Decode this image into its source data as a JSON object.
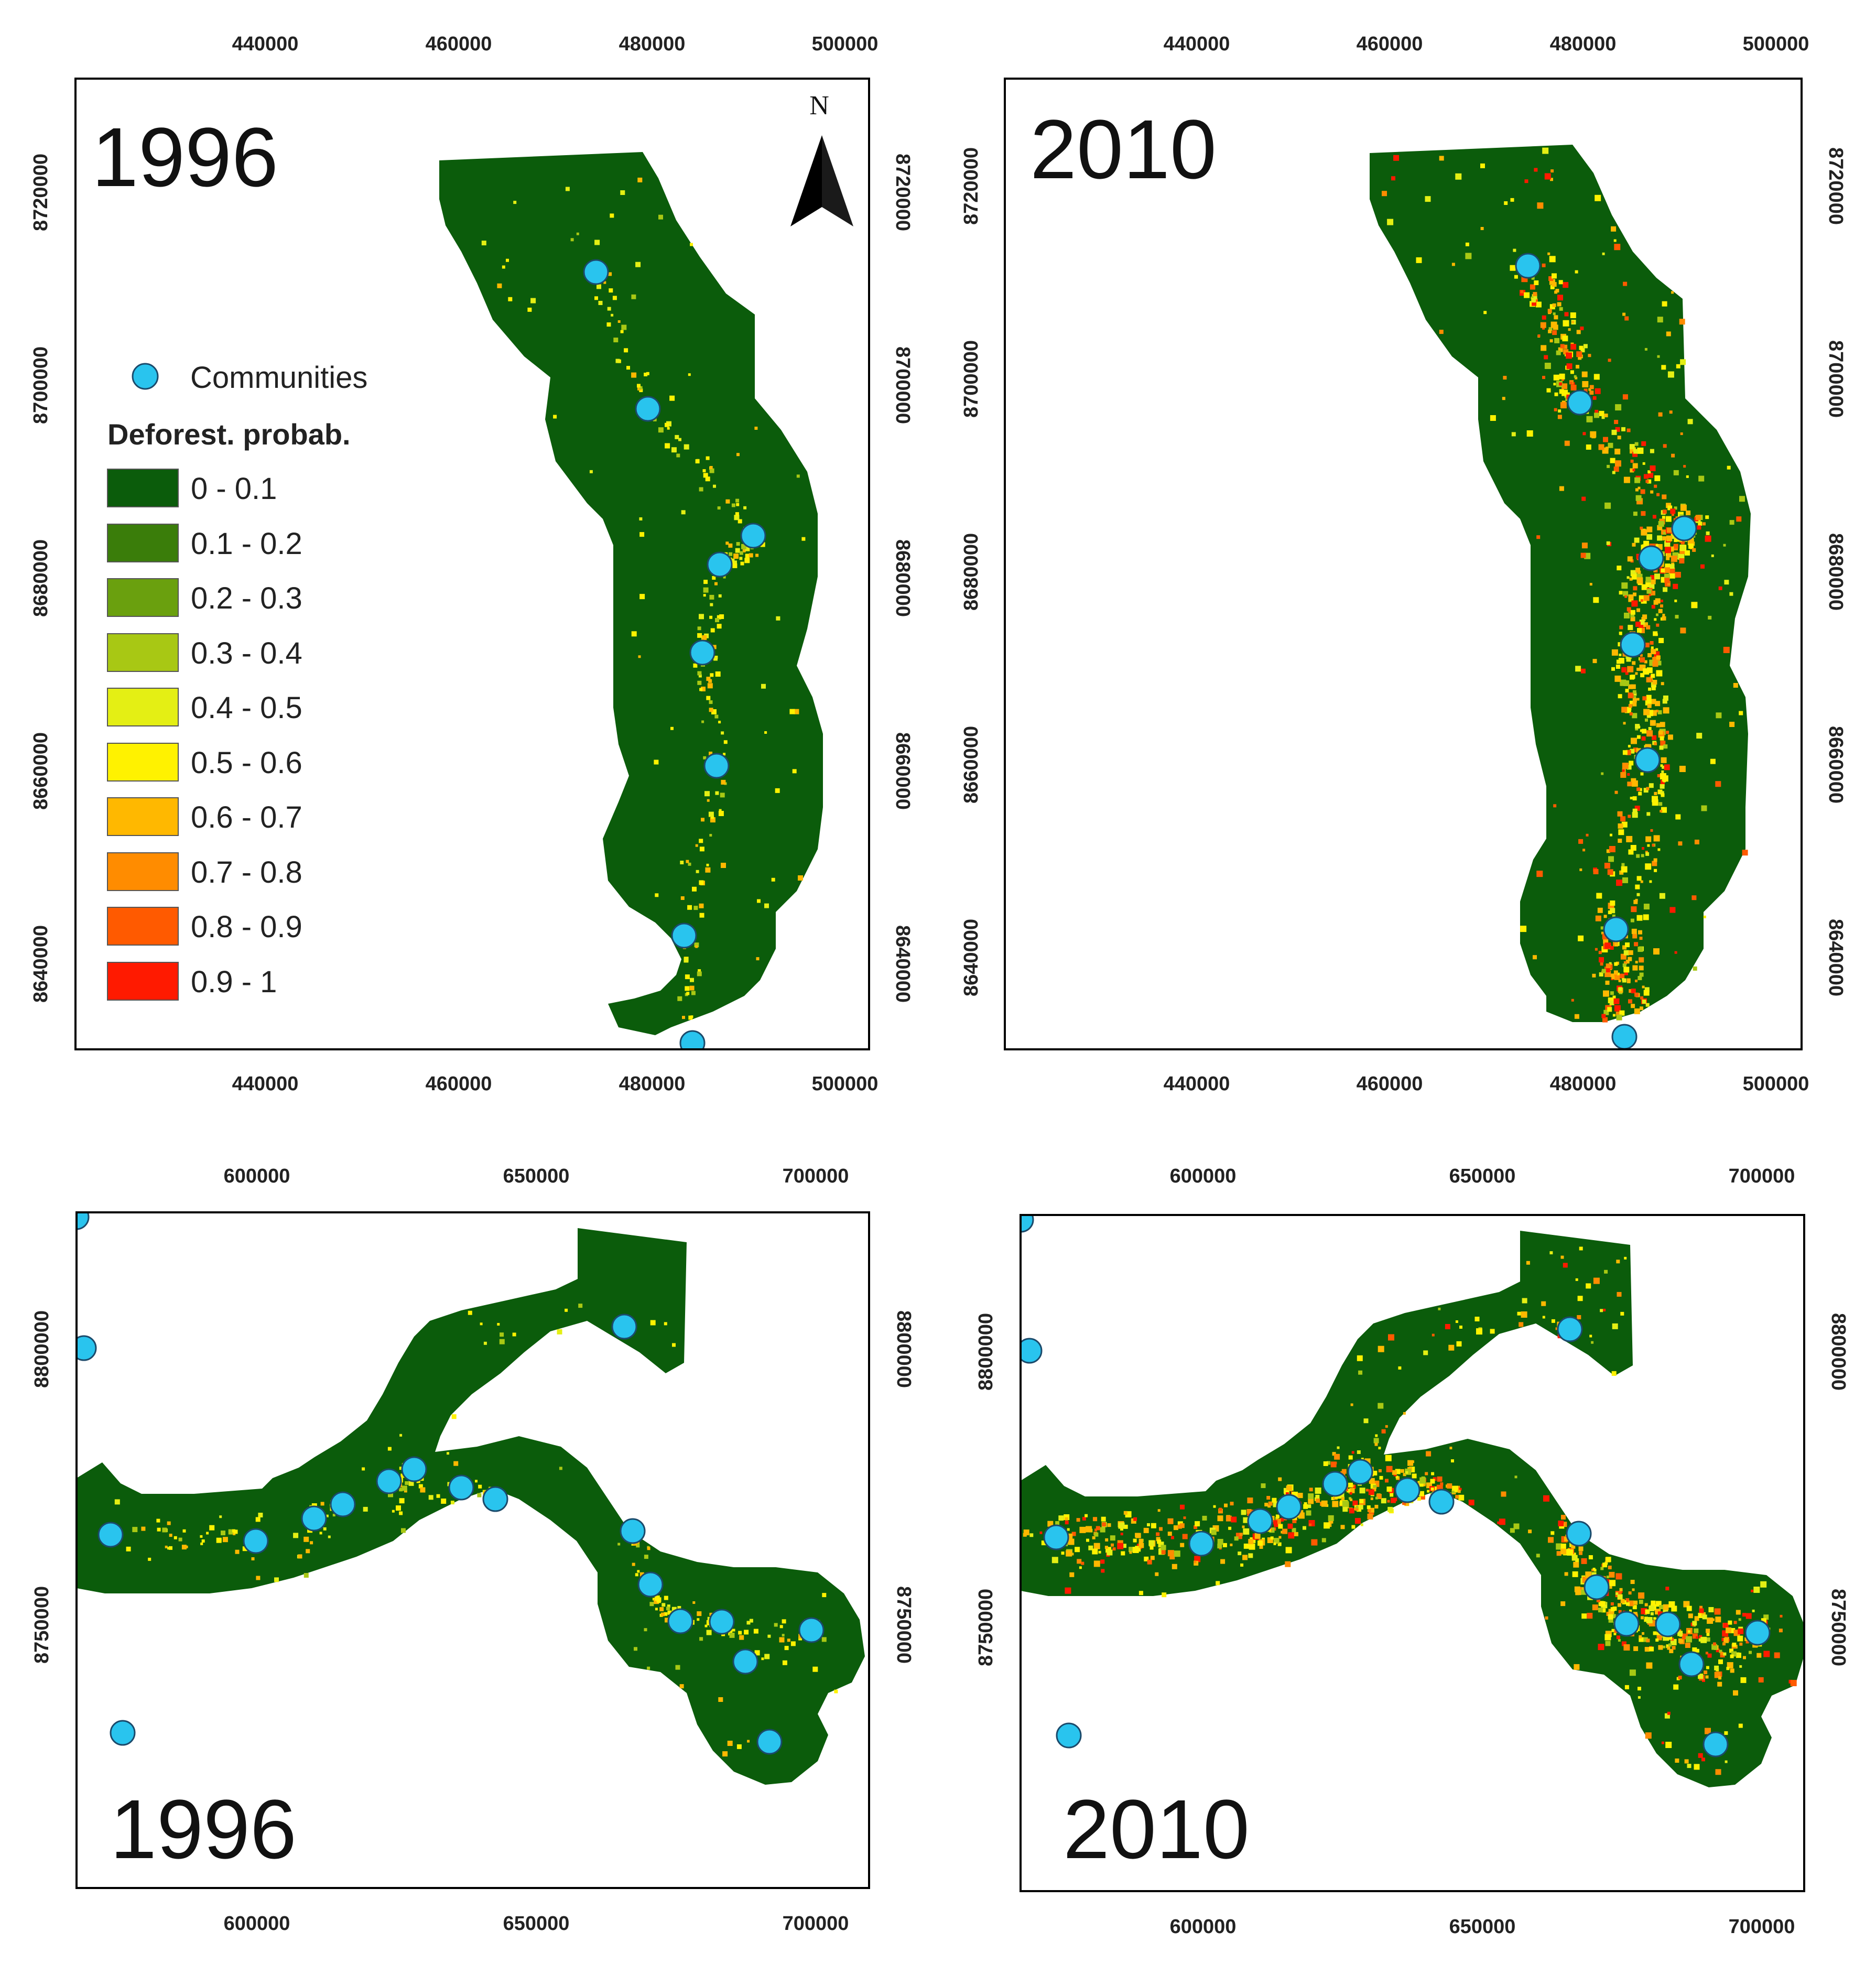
{
  "colors": {
    "forest": "#0b5c0b",
    "community_fill": "#29c4ee",
    "community_stroke": "#1b4a6b",
    "frame": "#000000",
    "classes": [
      "#0b5c0b",
      "#3a7d0a",
      "#6aa00e",
      "#a8c814",
      "#e4ef14",
      "#fff200",
      "#ffb800",
      "#ff8c00",
      "#ff5a00",
      "#ff1a00"
    ]
  },
  "legend": {
    "communities_label": "Communities",
    "title": "Deforest. probab.",
    "classes": [
      "0 - 0.1",
      "0.1 - 0.2",
      "0.2 - 0.3",
      "0.3 - 0.4",
      "0.4 - 0.5",
      "0.5 - 0.6",
      "0.6 - 0.7",
      "0.7 - 0.8",
      "0.8 - 0.9",
      "0.9 - 1"
    ]
  },
  "north_arrow": {
    "label": "N",
    "icon": "north-arrow-icon"
  },
  "panels": [
    {
      "id": "top-left",
      "year": "1996",
      "x_ticks": [
        "440000",
        "460000",
        "480000",
        "500000"
      ],
      "y_ticks": [
        "8720000",
        "8700000",
        "8680000",
        "8660000",
        "8640000"
      ],
      "communities": 8,
      "activity": "low"
    },
    {
      "id": "top-right",
      "year": "2010",
      "x_ticks": [
        "440000",
        "460000",
        "480000",
        "500000"
      ],
      "y_ticks": [
        "8720000",
        "8700000",
        "8680000",
        "8660000",
        "8640000"
      ],
      "communities": 8,
      "activity": "high"
    },
    {
      "id": "bottom-left",
      "year": "1996",
      "x_ticks": [
        "600000",
        "650000",
        "700000"
      ],
      "y_ticks": [
        "8800000",
        "8750000"
      ],
      "communities": 19,
      "activity": "low"
    },
    {
      "id": "bottom-right",
      "year": "2010",
      "x_ticks": [
        "600000",
        "650000",
        "700000"
      ],
      "y_ticks": [
        "8800000",
        "8750000"
      ],
      "communities": 19,
      "activity": "high"
    }
  ]
}
